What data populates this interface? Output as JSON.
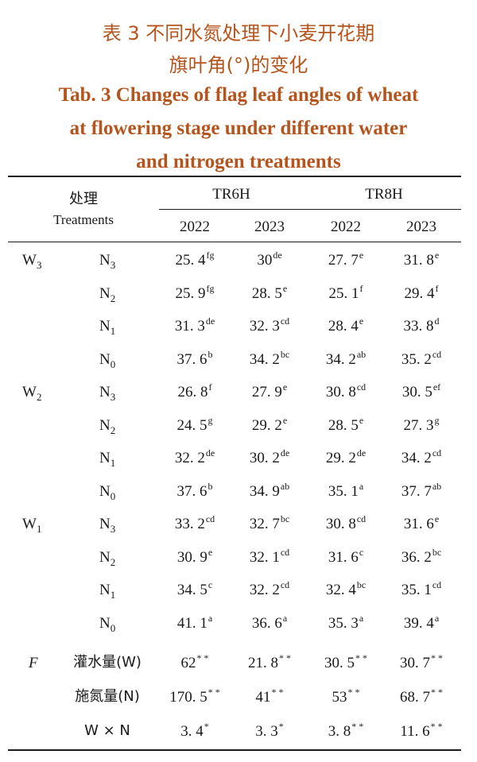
{
  "caption": {
    "cn_line1": "表 3   不同水氮处理下小麦开花期",
    "cn_line2": "旗叶角(°)的变化",
    "en_line1": "Tab. 3   Changes of flag leaf angles of wheat",
    "en_line2": "at flowering stage under different water",
    "en_line3": "and nitrogen treatments"
  },
  "header": {
    "treatment_cn": "处理",
    "treatment_en": "Treatments",
    "groups": [
      "TR6H",
      "TR8H"
    ],
    "years": [
      "2022",
      "2023",
      "2022",
      "2023"
    ]
  },
  "rows": [
    {
      "w": "W",
      "wsub": "3",
      "n": "N",
      "nsub": "3",
      "vals": [
        [
          "25. 4",
          "fg"
        ],
        [
          "30",
          "de"
        ],
        [
          "27. 7",
          "e"
        ],
        [
          "31. 8",
          "e"
        ]
      ]
    },
    {
      "w": "",
      "wsub": "",
      "n": "N",
      "nsub": "2",
      "vals": [
        [
          "25. 9",
          "fg"
        ],
        [
          "28. 5",
          "e"
        ],
        [
          "25. 1",
          "f"
        ],
        [
          "29. 4",
          "f"
        ]
      ]
    },
    {
      "w": "",
      "wsub": "",
      "n": "N",
      "nsub": "1",
      "vals": [
        [
          "31. 3",
          "de"
        ],
        [
          "32. 3",
          "cd"
        ],
        [
          "28. 4",
          "e"
        ],
        [
          "33. 8",
          "d"
        ]
      ]
    },
    {
      "w": "",
      "wsub": "",
      "n": "N",
      "nsub": "0",
      "vals": [
        [
          "37. 6",
          "b"
        ],
        [
          "34. 2",
          "bc"
        ],
        [
          "34. 2",
          "ab"
        ],
        [
          "35. 2",
          "cd"
        ]
      ]
    },
    {
      "w": "W",
      "wsub": "2",
      "n": "N",
      "nsub": "3",
      "vals": [
        [
          "26. 8",
          "f"
        ],
        [
          "27. 9",
          "e"
        ],
        [
          "30. 8",
          "cd"
        ],
        [
          "30. 5",
          "ef"
        ]
      ]
    },
    {
      "w": "",
      "wsub": "",
      "n": "N",
      "nsub": "2",
      "vals": [
        [
          "24. 5",
          "g"
        ],
        [
          "29. 2",
          "e"
        ],
        [
          "28. 5",
          "e"
        ],
        [
          "27. 3",
          "g"
        ]
      ]
    },
    {
      "w": "",
      "wsub": "",
      "n": "N",
      "nsub": "1",
      "vals": [
        [
          "32. 2",
          "de"
        ],
        [
          "30. 2",
          "de"
        ],
        [
          "29. 2",
          "de"
        ],
        [
          "34. 2",
          "cd"
        ]
      ]
    },
    {
      "w": "",
      "wsub": "",
      "n": "N",
      "nsub": "0",
      "vals": [
        [
          "37. 6",
          "b"
        ],
        [
          "34. 9",
          "ab"
        ],
        [
          "35. 1",
          "a"
        ],
        [
          "37. 7",
          "ab"
        ]
      ]
    },
    {
      "w": "W",
      "wsub": "1",
      "n": "N",
      "nsub": "3",
      "vals": [
        [
          "33. 2",
          "cd"
        ],
        [
          "32. 7",
          "bc"
        ],
        [
          "30. 8",
          "cd"
        ],
        [
          "31. 6",
          "e"
        ]
      ]
    },
    {
      "w": "",
      "wsub": "",
      "n": "N",
      "nsub": "2",
      "vals": [
        [
          "30. 9",
          "e"
        ],
        [
          "32. 1",
          "cd"
        ],
        [
          "31. 6",
          "c"
        ],
        [
          "36. 2",
          "bc"
        ]
      ]
    },
    {
      "w": "",
      "wsub": "",
      "n": "N",
      "nsub": "1",
      "vals": [
        [
          "34. 5",
          "c"
        ],
        [
          "32. 2",
          "cd"
        ],
        [
          "32. 4",
          "bc"
        ],
        [
          "35. 1",
          "cd"
        ]
      ]
    },
    {
      "w": "",
      "wsub": "",
      "n": "N",
      "nsub": "0",
      "vals": [
        [
          "41. 1",
          "a"
        ],
        [
          "36. 6",
          "a"
        ],
        [
          "35. 3",
          "a"
        ],
        [
          "39. 4",
          "a"
        ]
      ]
    }
  ],
  "f_rows": [
    {
      "label": "F",
      "factor": "灌水量(W)",
      "vals": [
        [
          "62",
          "* *"
        ],
        [
          "21. 8",
          "* *"
        ],
        [
          "30. 5",
          "* *"
        ],
        [
          "30. 7",
          "* *"
        ]
      ]
    },
    {
      "label": "",
      "factor": "施氮量(N)",
      "vals": [
        [
          "170. 5",
          "* *"
        ],
        [
          "41",
          "* *"
        ],
        [
          "53",
          "* *"
        ],
        [
          "68. 7",
          "* *"
        ]
      ]
    },
    {
      "label": "",
      "factor": "W × N",
      "vals": [
        [
          "3. 4",
          "*"
        ],
        [
          "3. 3",
          "*"
        ],
        [
          "3. 8",
          "* *"
        ],
        [
          "11. 6",
          "* *"
        ]
      ]
    }
  ]
}
